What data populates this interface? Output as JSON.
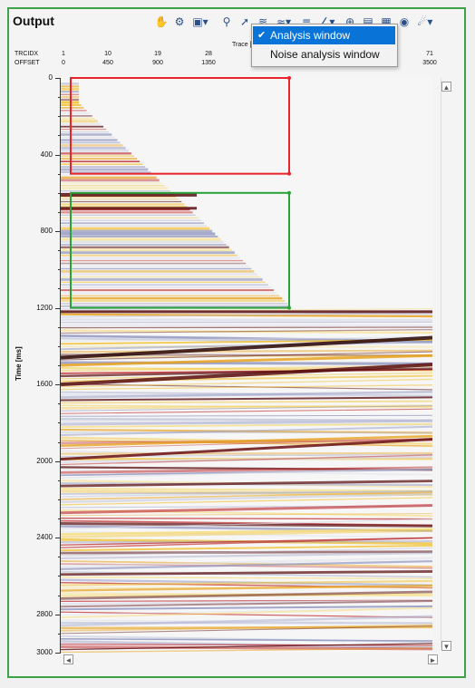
{
  "panel": {
    "title": "Output"
  },
  "toolbar": {
    "icons": [
      "hand-icon",
      "gear-icon",
      "select-window-icon",
      "zoom-icon",
      "pointer-icon",
      "layer-icon",
      "wave-icon",
      "mute-icon",
      "pick-icon",
      "crosshair-icon",
      "export-icon",
      "save-icon",
      "settings-icon",
      "navigate-icon"
    ]
  },
  "menu": {
    "items": [
      {
        "label": "Analysis window",
        "checked": true
      },
      {
        "label": "Noise analysis window",
        "checked": false
      }
    ],
    "check_mark": "✔"
  },
  "header_names": {
    "row1": "TRCIDX",
    "row2": "OFFSET"
  },
  "trace_label": "Trace [",
  "traces": [
    {
      "idx": "1",
      "offset": "0"
    },
    {
      "idx": "10",
      "offset": "450"
    },
    {
      "idx": "19",
      "offset": "900"
    },
    {
      "idx": "28",
      "offset": "1350"
    },
    {
      "idx": "3",
      "offset": "1"
    },
    {
      "idx": "64",
      "offset": "150"
    },
    {
      "idx": "71",
      "offset": "3500"
    }
  ],
  "yaxis": {
    "label": "Time [ms]",
    "ticks": [
      "0",
      "400",
      "800",
      "1200",
      "1600",
      "2000",
      "2400",
      "2800",
      "3000"
    ]
  },
  "windows": {
    "analysis_color": "#e8232a",
    "noise_color": "#27a33a"
  },
  "frame_color": "#3da24a",
  "scroll": {
    "up": "▲",
    "down": "▼",
    "left": "◄",
    "right": "►"
  }
}
